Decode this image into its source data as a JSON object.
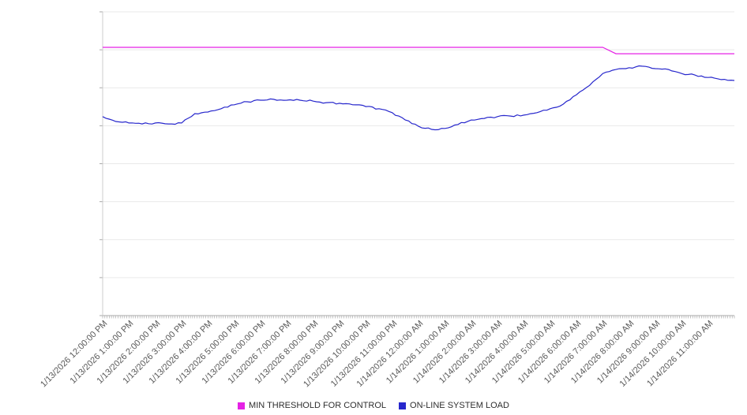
{
  "chart_data": {
    "type": "line",
    "title": "",
    "xlabel": "",
    "ylabel": "",
    "x_labels": [
      "1/13/2026 12:00:00 PM",
      "1/13/2026 1:00:00 PM",
      "1/13/2026 2:00:00 PM",
      "1/13/2026 3:00:00 PM",
      "1/13/2026 4:00:00 PM",
      "1/13/2026 5:00:00 PM",
      "1/13/2026 6:00:00 PM",
      "1/13/2026 7:00:00 PM",
      "1/13/2026 8:00:00 PM",
      "1/13/2026 9:00:00 PM",
      "1/13/2026 10:00:00 PM",
      "1/13/2026 11:00:00 PM",
      "1/14/2026 12:00:00 AM",
      "1/14/2026 1:00:00 AM",
      "1/14/2026 2:00:00 AM",
      "1/14/2026 3:00:00 AM",
      "1/14/2026 4:00:00 AM",
      "1/14/2026 5:00:00 AM",
      "1/14/2026 6:00:00 AM",
      "1/14/2026 7:00:00 AM",
      "1/14/2026 8:00:00 AM",
      "1/14/2026 9:00:00 AM",
      "1/14/2026 10:00:00 AM",
      "1/14/2026 11:00:00 AM"
    ],
    "x_range_hours": 24,
    "sample_interval_hours": 0.5,
    "ylim": [
      0,
      100
    ],
    "grid_divisions": 8,
    "grid": true,
    "legend_position": "bottom",
    "series": [
      {
        "name": "MIN THRESHOLD FOR CONTROL",
        "color": "#e522e5",
        "values": [
          88.3,
          88.3,
          88.3,
          88.3,
          88.3,
          88.3,
          88.3,
          88.3,
          88.3,
          88.3,
          88.3,
          88.3,
          88.3,
          88.3,
          88.3,
          88.3,
          88.3,
          88.3,
          88.3,
          88.3,
          88.3,
          88.3,
          88.3,
          88.3,
          88.3,
          88.3,
          88.3,
          88.3,
          88.3,
          88.3,
          88.3,
          88.3,
          88.3,
          88.3,
          88.3,
          88.3,
          88.3,
          88.3,
          88.3,
          86.2,
          86.2,
          86.2,
          86.2,
          86.2,
          86.2,
          86.2,
          86.2,
          86.2,
          86.2
        ]
      },
      {
        "name": "ON-LINE SYSTEM LOAD",
        "color": "#2727cc",
        "values": [
          65.5,
          63.9,
          63.4,
          63.1,
          63.4,
          63.1,
          63.4,
          66.5,
          67.0,
          68.1,
          69.4,
          70.4,
          70.9,
          71.2,
          70.9,
          70.9,
          70.6,
          70.1,
          69.9,
          69.4,
          68.8,
          68.1,
          66.8,
          64.4,
          62.3,
          61.3,
          61.6,
          62.9,
          64.4,
          64.9,
          65.5,
          65.7,
          66.0,
          66.8,
          68.1,
          69.6,
          72.7,
          75.8,
          79.7,
          81.0,
          81.6,
          82.1,
          81.3,
          81.0,
          79.7,
          79.2,
          78.4,
          77.7,
          77.4
        ]
      }
    ]
  }
}
